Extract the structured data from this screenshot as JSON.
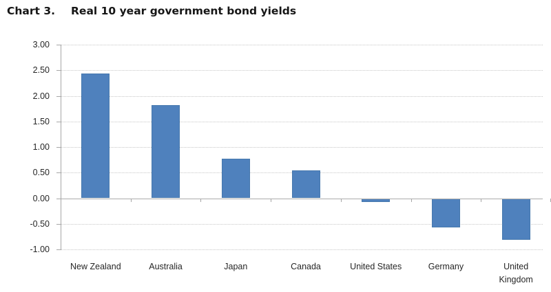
{
  "title": {
    "prefix": "Chart 3.",
    "text": "Real 10 year government bond yields"
  },
  "chart_data": {
    "type": "bar",
    "title": "Chart 3. Real 10 year government bond yields",
    "categories": [
      "New Zealand",
      "Australia",
      "Japan",
      "Canada",
      "United States",
      "Germany",
      "United Kingdom"
    ],
    "values": [
      2.44,
      1.82,
      0.77,
      0.54,
      -0.07,
      -0.57,
      -0.81
    ],
    "xlabel": "",
    "ylabel": "",
    "ylim": [
      -1.0,
      3.0
    ],
    "ytick_step": 0.5,
    "ytick_labels": [
      "3.00",
      "2.50",
      "2.00",
      "1.50",
      "1.00",
      "0.50",
      "0.00",
      "-0.50",
      "-1.00"
    ],
    "grid": "horizontal-dotted",
    "legend": "none",
    "bar_color": "#4F81BD"
  },
  "colors": {
    "bar_fill": "#4F81BD",
    "bar_border": "#4678ad",
    "gridline": "#c6c6c6",
    "axis_line": "#a6a6a6",
    "text": "#262626",
    "title_text": "#161616",
    "background": "#ffffff"
  }
}
